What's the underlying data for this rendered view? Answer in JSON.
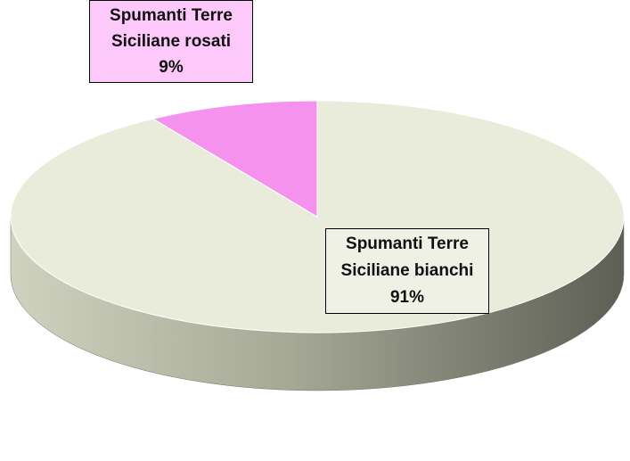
{
  "chart_data": {
    "type": "pie",
    "categories": [
      "Spumanti Terre Siciliane bianchi",
      "Spumanti Terre Siciliane rosati"
    ],
    "values": [
      91,
      9
    ],
    "value_labels": [
      "91%",
      "9%"
    ],
    "colors": [
      "#e9ecdb",
      "#f592ee"
    ],
    "label_colors": [
      "#eff1e4",
      "#fcc9fa"
    ]
  }
}
